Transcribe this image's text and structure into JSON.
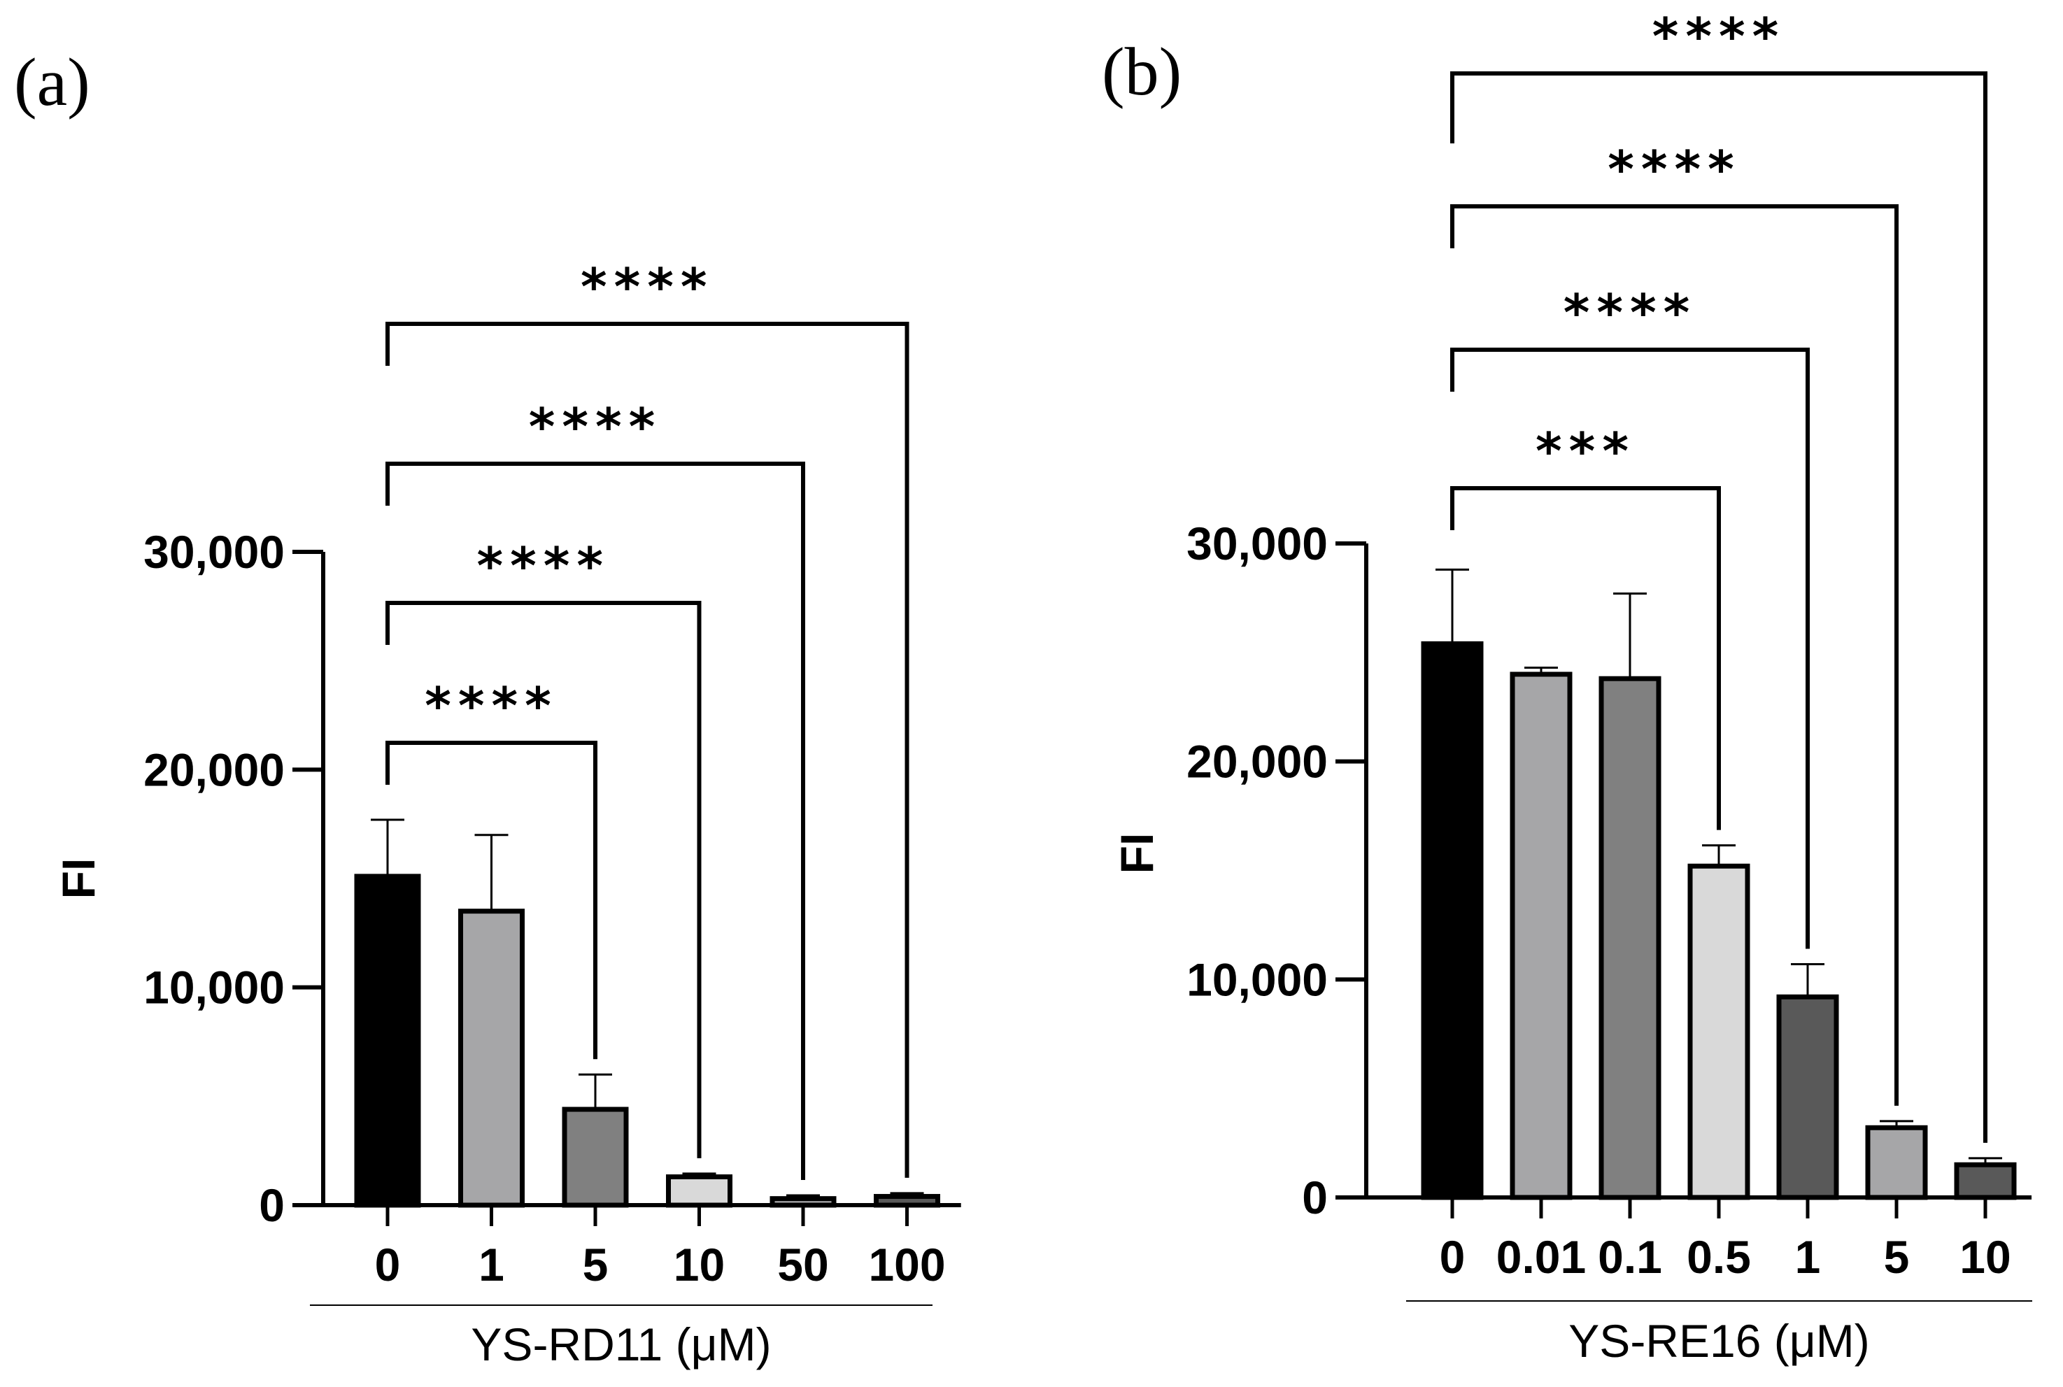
{
  "chart_data": [
    {
      "type": "bar",
      "panel_label": "(a)",
      "title": "",
      "xlabel": "YS-RD11 (μM)",
      "ylabel": "FI",
      "ylim": [
        0,
        30000
      ],
      "yticks": [
        0,
        10000,
        20000,
        30000
      ],
      "ytick_labels": [
        "0",
        "10,000",
        "20,000",
        "30,000"
      ],
      "categories": [
        "0",
        "1",
        "5",
        "10",
        "50",
        "100"
      ],
      "values": [
        15100,
        13500,
        4400,
        1300,
        300,
        400
      ],
      "errors": [
        2600,
        3500,
        1600,
        150,
        150,
        150
      ],
      "bar_colors": [
        "#000000",
        "#a6a6a8",
        "#808080",
        "#d9d9d9",
        "#a6a6a8",
        "#595959"
      ],
      "comparisons": [
        {
          "from": "0",
          "to": "5",
          "label": "****"
        },
        {
          "from": "0",
          "to": "10",
          "label": "****"
        },
        {
          "from": "0",
          "to": "50",
          "label": "****"
        },
        {
          "from": "0",
          "to": "100",
          "label": "****"
        }
      ]
    },
    {
      "type": "bar",
      "panel_label": "(b)",
      "title": "",
      "xlabel": "YS-RE16 (μM)",
      "ylabel": "FI",
      "ylim": [
        0,
        30000
      ],
      "yticks": [
        0,
        10000,
        20000,
        30000
      ],
      "ytick_labels": [
        "0",
        "10,000",
        "20,000",
        "30,000"
      ],
      "categories": [
        "0",
        "0.01",
        "0.1",
        "0.5",
        "1",
        "5",
        "10"
      ],
      "values": [
        25400,
        24000,
        23800,
        15200,
        9200,
        3200,
        1500
      ],
      "errors": [
        3400,
        300,
        3900,
        950,
        1500,
        300,
        300
      ],
      "bar_colors": [
        "#000000",
        "#a6a6a8",
        "#808080",
        "#d9d9d9",
        "#595959",
        "#a6a6a8",
        "#595959"
      ],
      "comparisons": [
        {
          "from": "0",
          "to": "0.5",
          "label": "***"
        },
        {
          "from": "0",
          "to": "1",
          "label": "****"
        },
        {
          "from": "0",
          "to": "5",
          "label": "****"
        },
        {
          "from": "0",
          "to": "10",
          "label": "****"
        }
      ]
    }
  ]
}
